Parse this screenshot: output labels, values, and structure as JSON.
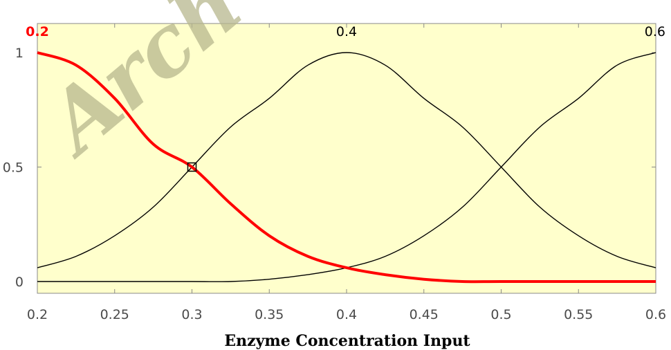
{
  "chart_data": {
    "type": "line",
    "xlabel": "Enzyme Concentration Input",
    "ylabel": "",
    "xlim": [
      0.2,
      0.6
    ],
    "ylim": [
      0,
      1
    ],
    "x_ticks": [
      "0.2",
      "0.25",
      "0.3",
      "0.35",
      "0.4",
      "0.45",
      "0.5",
      "0.55",
      "0.6"
    ],
    "y_ticks": [
      "0",
      "0.5",
      "1"
    ],
    "grid": false,
    "plot_background": "#ffffcc",
    "series": [
      {
        "label": "0.2",
        "selected": true,
        "color": "#ff0000",
        "x": [
          0.2,
          0.225,
          0.25,
          0.275,
          0.3,
          0.325,
          0.35,
          0.375,
          0.4,
          0.425,
          0.45,
          0.475,
          0.5,
          0.55,
          0.6
        ],
        "y": [
          1.0,
          0.945,
          0.8,
          0.6,
          0.5,
          0.34,
          0.2,
          0.11,
          0.06,
          0.03,
          0.01,
          0.0,
          0.0,
          0.0,
          0.0
        ]
      },
      {
        "label": "0.4",
        "selected": false,
        "color": "#000000",
        "x": [
          0.2,
          0.225,
          0.25,
          0.275,
          0.3,
          0.325,
          0.35,
          0.375,
          0.4,
          0.425,
          0.45,
          0.475,
          0.5,
          0.525,
          0.55,
          0.575,
          0.6
        ],
        "y": [
          0.06,
          0.11,
          0.2,
          0.325,
          0.5,
          0.675,
          0.8,
          0.945,
          1.0,
          0.945,
          0.8,
          0.675,
          0.5,
          0.325,
          0.2,
          0.11,
          0.06
        ]
      },
      {
        "label": "0.6",
        "selected": false,
        "color": "#000000",
        "x": [
          0.2,
          0.25,
          0.3,
          0.325,
          0.35,
          0.375,
          0.4,
          0.425,
          0.45,
          0.475,
          0.5,
          0.525,
          0.55,
          0.575,
          0.6
        ],
        "y": [
          0.0,
          0.0,
          0.0,
          0.0,
          0.01,
          0.03,
          0.06,
          0.11,
          0.2,
          0.325,
          0.5,
          0.675,
          0.8,
          0.945,
          1.0
        ]
      }
    ],
    "marker": {
      "x": 0.3,
      "y": 0.5,
      "shape": "square"
    },
    "watermark": "Arch"
  }
}
